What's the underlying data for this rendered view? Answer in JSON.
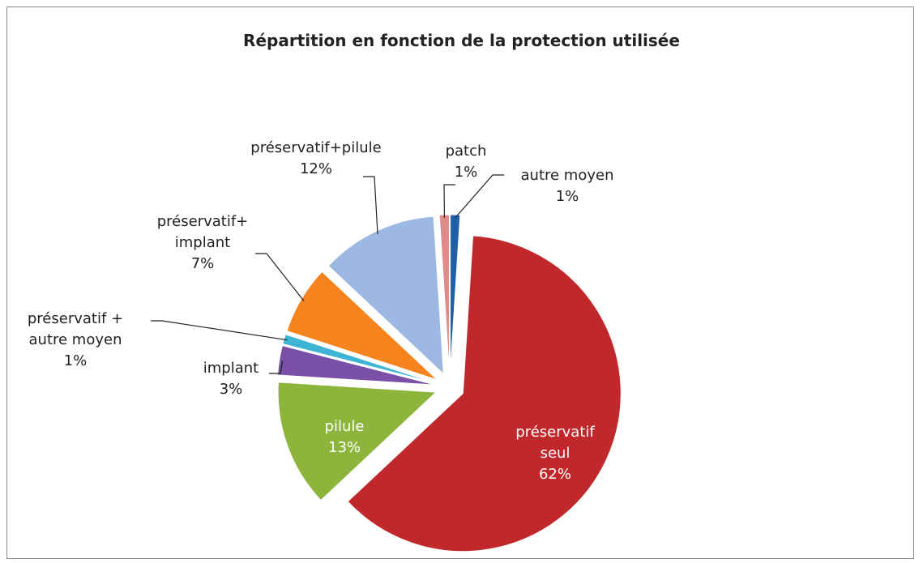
{
  "chart_data": {
    "type": "pie",
    "title": "Répartition en fonction de la protection utilisée",
    "categories": [
      "autre moyen",
      "préservatif\nseul",
      "pilule",
      "implant",
      "préservatif +\nautre moyen",
      "préservatif+\nimplant",
      "préservatif+pilule",
      "patch"
    ],
    "values": [
      1,
      62,
      13,
      3,
      1,
      7,
      12,
      1
    ],
    "value_labels": [
      "1%",
      "62%",
      "13%",
      "3%",
      "1%",
      "7%",
      "12%",
      "1%"
    ],
    "colors": [
      "#1f5fa8",
      "#c0282b",
      "#8db53c",
      "#7a4fa6",
      "#3fb5d6",
      "#f5841f",
      "#9db9e3",
      "#e08a8a"
    ]
  }
}
